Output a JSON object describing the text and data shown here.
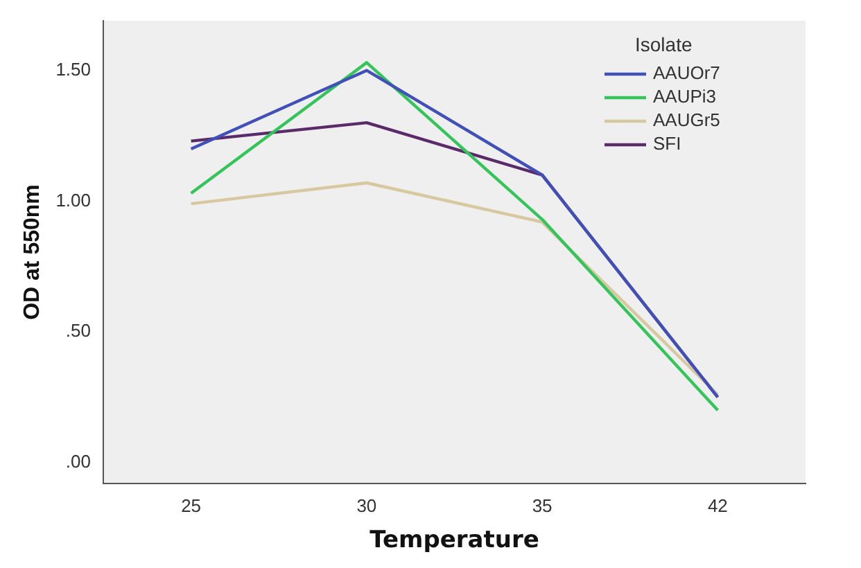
{
  "chart_data": {
    "type": "line",
    "xlabel": "Temperature",
    "ylabel": "OD at 550nm",
    "legend_title": "Isolate",
    "legend": "top right",
    "grid": false,
    "marker": "none",
    "line_style": "solid",
    "categories": [
      "25",
      "30",
      "35",
      "42"
    ],
    "ylim": [
      -0.08,
      1.69
    ],
    "yticks": [
      {
        "value": 0,
        "label": ".00"
      },
      {
        "value": 0.5,
        "label": ".50"
      },
      {
        "value": 1,
        "label": "1.00"
      },
      {
        "value": 1.5,
        "label": "1.50"
      }
    ],
    "series": [
      {
        "name": "AAUOr7",
        "color": "#4050b8",
        "values": [
          1.2,
          1.5,
          1.1,
          0.25
        ]
      },
      {
        "name": "AAUPi3",
        "color": "#33c45a",
        "values": [
          1.03,
          1.53,
          0.93,
          0.2
        ]
      },
      {
        "name": "AAUGr5",
        "color": "#d8c8a0",
        "values": [
          0.99,
          1.07,
          0.92,
          0.26
        ]
      },
      {
        "name": "SFI",
        "color": "#5a2a6a",
        "values": [
          1.23,
          1.3,
          1.1,
          0.25
        ]
      }
    ]
  }
}
